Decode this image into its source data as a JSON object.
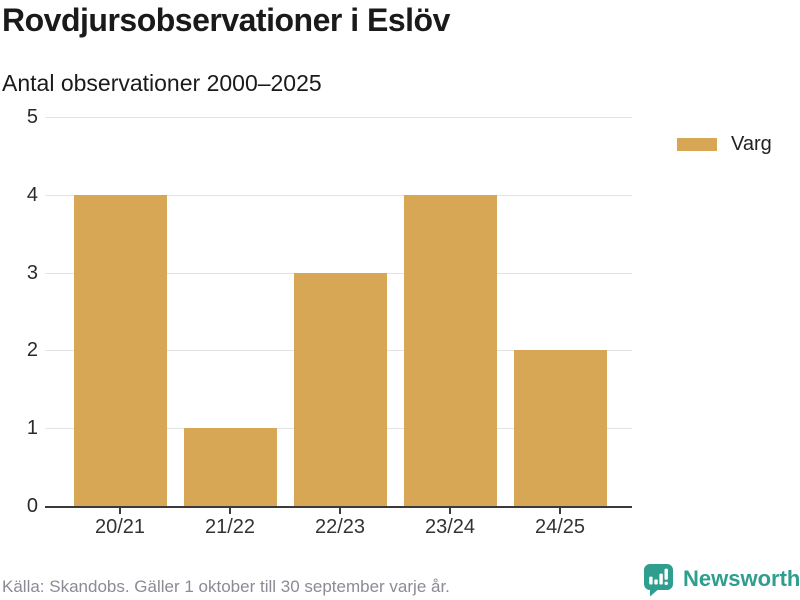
{
  "header": {
    "title": "Rovdjursobservationer i Eslöv",
    "subtitle": "Antal observationer 2000–2025"
  },
  "legend": {
    "items": [
      {
        "label": "Varg",
        "color": "#d8a755"
      }
    ]
  },
  "chart_data": {
    "type": "bar",
    "categories": [
      "20/21",
      "21/22",
      "22/23",
      "23/24",
      "24/25"
    ],
    "series": [
      {
        "name": "Varg",
        "color": "#d8a755",
        "values": [
          4,
          1,
          3,
          4,
          2
        ]
      }
    ],
    "title": "Rovdjursobservationer i Eslöv",
    "subtitle": "Antal observationer 2000–2025",
    "xlabel": "",
    "ylabel": "",
    "ylim": [
      0,
      5
    ],
    "yticks": [
      0,
      1,
      2,
      3,
      4,
      5
    ],
    "grid": true,
    "legend_position": "right"
  },
  "footer": {
    "source": "Källa: Skandobs. Gäller 1 oktober till 30 september varje år.",
    "brand": "Newsworthy"
  },
  "colors": {
    "bar": "#d8a755",
    "grid": "#e3e3e3",
    "axis": "#3a3a3a",
    "brand_teal": "#2f9e8f",
    "title_text": "#1a1a1a",
    "tick_text": "#333333",
    "muted_text": "#8b8b95"
  }
}
